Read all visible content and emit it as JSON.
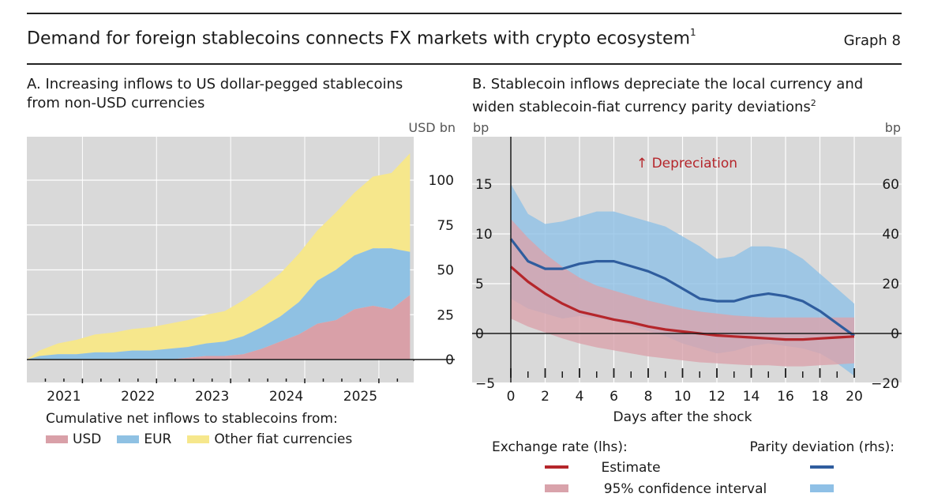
{
  "header": {
    "title": "Demand for foreign stablecoins connects FX markets with crypto ecosystem",
    "title_note": "1",
    "graph_label": "Graph 8"
  },
  "colors": {
    "panel_bg": "#d9d9d9",
    "usd": "#d9a0a8",
    "eur": "#8fc1e3",
    "other": "#f6e78c",
    "estimate_line": "#b5262b",
    "estimate_band": "#d9a3ab",
    "parity_line": "#2f5d9e",
    "parity_band": "#8fc0e6"
  },
  "panel_a": {
    "title_line1": "A. Increasing inflows to US dollar-pegged stablecoins",
    "title_line2": "from non-USD currencies",
    "unit": "USD bn",
    "legend_title": "Cumulative net inflows to stablecoins from:",
    "legend": [
      {
        "label": "USD",
        "color": "#d9a0a8"
      },
      {
        "label": "EUR",
        "color": "#8fc1e3"
      },
      {
        "label": "Other fiat currencies",
        "color": "#f6e78c"
      }
    ]
  },
  "panel_b": {
    "title_line1": "B. Stablecoin inflows depreciate the local currency and",
    "title_line2": "widen stablecoin-fiat currency parity deviations",
    "title_note": "2",
    "unit_left": "bp",
    "unit_right": "bp",
    "annotation": "↑ Depreciation",
    "legend_left_title": "Exchange rate (lhs):",
    "legend_right_title": "Parity deviation (rhs):",
    "legend_estimate": "Estimate",
    "legend_ci": "95% confidence interval"
  },
  "chart_data": [
    {
      "type": "area",
      "stacked": true,
      "title": "A. Increasing inflows to US dollar-pegged stablecoins from non-USD currencies",
      "ylabel": "USD bn",
      "ylim": [
        -5,
        125
      ],
      "yticks": [
        0,
        25,
        50,
        75,
        100
      ],
      "xlim": [
        2020.58,
        2025.8
      ],
      "xticks": [
        "2021",
        "2022",
        "2023",
        "2024",
        "2025"
      ],
      "grid": true,
      "legend_position": "bottom",
      "x": [
        2020.58,
        2020.75,
        2021.0,
        2021.25,
        2021.5,
        2021.75,
        2022.0,
        2022.25,
        2022.5,
        2022.75,
        2023.0,
        2023.25,
        2023.5,
        2023.75,
        2024.0,
        2024.25,
        2024.5,
        2024.75,
        2025.0,
        2025.25,
        2025.5,
        2025.75
      ],
      "series": [
        {
          "name": "USD",
          "values": [
            0,
            0,
            0,
            0,
            0,
            0,
            0,
            0,
            0,
            1,
            2,
            2,
            3,
            6,
            10,
            14,
            20,
            22,
            28,
            30,
            28,
            36
          ]
        },
        {
          "name": "EUR",
          "values": [
            0,
            2,
            3,
            3,
            4,
            4,
            5,
            5,
            6,
            6,
            7,
            8,
            10,
            12,
            14,
            18,
            24,
            28,
            30,
            32,
            34,
            24
          ]
        },
        {
          "name": "Other fiat currencies",
          "values": [
            0,
            3,
            6,
            8,
            10,
            11,
            12,
            13,
            14,
            15,
            16,
            17,
            20,
            22,
            24,
            27,
            28,
            32,
            35,
            40,
            42,
            55
          ]
        }
      ]
    },
    {
      "type": "line",
      "title": "B. Stablecoin inflows depreciate the local currency and widen stablecoin-fiat currency parity deviations",
      "xlabel": "Days after the shock",
      "ylabel_left": "bp",
      "ylabel_right": "bp",
      "xlim": [
        0,
        20
      ],
      "xticks": [
        0,
        2,
        4,
        6,
        8,
        10,
        12,
        14,
        16,
        18,
        20
      ],
      "ylim_left": [
        -6,
        19
      ],
      "yticks_left": [
        -5,
        0,
        5,
        10,
        15
      ],
      "ylim_right": [
        -24,
        76
      ],
      "yticks_right": [
        -20,
        0,
        20,
        40,
        60
      ],
      "grid": true,
      "legend_position": "bottom",
      "x": [
        0,
        1,
        2,
        3,
        4,
        5,
        6,
        7,
        8,
        9,
        10,
        11,
        12,
        13,
        14,
        15,
        16,
        17,
        18,
        19,
        20
      ],
      "series": [
        {
          "name": "Exchange rate (lhs): Estimate",
          "axis": "left",
          "values": [
            6.7,
            5.2,
            4.0,
            3.0,
            2.2,
            1.8,
            1.4,
            1.1,
            0.7,
            0.4,
            0.2,
            0.0,
            -0.2,
            -0.3,
            -0.4,
            -0.5,
            -0.6,
            -0.6,
            -0.5,
            -0.4,
            -0.3
          ]
        },
        {
          "name": "Exchange rate (lhs): 95% confidence interval (lower)",
          "axis": "left",
          "values": [
            1.5,
            0.7,
            0.1,
            -0.5,
            -1.0,
            -1.4,
            -1.7,
            -2.0,
            -2.3,
            -2.5,
            -2.7,
            -2.9,
            -3.0,
            -3.1,
            -3.2,
            -3.2,
            -3.3,
            -3.3,
            -3.2,
            -3.1,
            -3.0
          ]
        },
        {
          "name": "Exchange rate (lhs): 95% confidence interval (upper)",
          "axis": "left",
          "values": [
            11.5,
            9.6,
            8.0,
            6.7,
            5.6,
            4.8,
            4.3,
            3.8,
            3.3,
            2.9,
            2.5,
            2.2,
            2.0,
            1.8,
            1.7,
            1.6,
            1.6,
            1.6,
            1.6,
            1.6,
            1.6
          ]
        },
        {
          "name": "Parity deviation (rhs): Estimate",
          "axis": "right",
          "values": [
            38,
            29,
            26,
            26,
            28,
            29,
            29,
            27,
            25,
            22,
            18,
            14,
            13,
            13,
            15,
            16,
            15,
            13,
            9,
            4,
            -1
          ]
        },
        {
          "name": "Parity deviation (rhs): 95% confidence interval (lower)",
          "axis": "right",
          "values": [
            14,
            10,
            8,
            6,
            7,
            6,
            5,
            3,
            1,
            -1,
            -4,
            -6,
            -8,
            -7,
            -5,
            -4,
            -5,
            -6,
            -8,
            -12,
            -17
          ]
        },
        {
          "name": "Parity deviation (rhs): 95% confidence interval (upper)",
          "axis": "right",
          "values": [
            60,
            48,
            44,
            45,
            47,
            49,
            49,
            47,
            45,
            43,
            39,
            35,
            30,
            31,
            35,
            35,
            34,
            30,
            24,
            18,
            12
          ]
        }
      ]
    }
  ]
}
